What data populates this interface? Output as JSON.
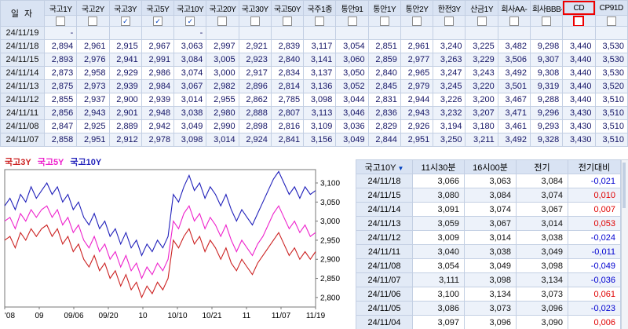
{
  "top_table": {
    "date_header": "일 자",
    "columns": [
      {
        "label": "국고1Y",
        "checked": false,
        "highlighted": false
      },
      {
        "label": "국고2Y",
        "checked": false,
        "highlighted": false
      },
      {
        "label": "국고3Y",
        "checked": true,
        "highlighted": false
      },
      {
        "label": "국고5Y",
        "checked": true,
        "highlighted": false
      },
      {
        "label": "국고10Y",
        "checked": true,
        "highlighted": false
      },
      {
        "label": "국고20Y",
        "checked": false,
        "highlighted": false
      },
      {
        "label": "국고30Y",
        "checked": false,
        "highlighted": false
      },
      {
        "label": "국고50Y",
        "checked": false,
        "highlighted": false
      },
      {
        "label": "국주1종",
        "checked": false,
        "highlighted": false
      },
      {
        "label": "통안91",
        "checked": false,
        "highlighted": false
      },
      {
        "label": "통안1Y",
        "checked": false,
        "highlighted": false
      },
      {
        "label": "통안2Y",
        "checked": false,
        "highlighted": false
      },
      {
        "label": "한전3Y",
        "checked": false,
        "highlighted": false
      },
      {
        "label": "산금1Y",
        "checked": false,
        "highlighted": false
      },
      {
        "label": "회사AA-",
        "checked": false,
        "highlighted": false
      },
      {
        "label": "회사BBB-",
        "checked": false,
        "highlighted": false
      },
      {
        "label": "CD",
        "checked": false,
        "highlighted": true
      },
      {
        "label": "CP91D",
        "checked": false,
        "highlighted": false
      }
    ],
    "rows": [
      {
        "date": "24/11/19",
        "values": [
          "-",
          "",
          "",
          "",
          "-",
          "",
          "",
          "",
          "",
          "",
          "",
          "",
          "",
          "",
          "",
          "",
          "",
          ""
        ]
      },
      {
        "date": "24/11/18",
        "values": [
          "2,894",
          "2,961",
          "2,915",
          "2,967",
          "3,063",
          "2,997",
          "2,921",
          "2,839",
          "3,117",
          "3,054",
          "2,851",
          "2,961",
          "3,240",
          "3,225",
          "3,482",
          "9,298",
          "3,440",
          "3,530"
        ]
      },
      {
        "date": "24/11/15",
        "values": [
          "2,893",
          "2,976",
          "2,941",
          "2,991",
          "3,084",
          "3,005",
          "2,923",
          "2,840",
          "3,141",
          "3,060",
          "2,859",
          "2,977",
          "3,263",
          "3,229",
          "3,506",
          "9,307",
          "3,440",
          "3,530"
        ]
      },
      {
        "date": "24/11/14",
        "values": [
          "2,873",
          "2,958",
          "2,929",
          "2,986",
          "3,074",
          "3,000",
          "2,917",
          "2,834",
          "3,137",
          "3,050",
          "2,840",
          "2,965",
          "3,247",
          "3,243",
          "3,492",
          "9,308",
          "3,440",
          "3,530"
        ]
      },
      {
        "date": "24/11/13",
        "values": [
          "2,875",
          "2,973",
          "2,939",
          "2,984",
          "3,067",
          "2,982",
          "2,896",
          "2,814",
          "3,136",
          "3,052",
          "2,845",
          "2,979",
          "3,245",
          "3,220",
          "3,501",
          "9,319",
          "3,440",
          "3,520"
        ]
      },
      {
        "date": "24/11/12",
        "values": [
          "2,855",
          "2,937",
          "2,900",
          "2,939",
          "3,014",
          "2,955",
          "2,862",
          "2,785",
          "3,098",
          "3,044",
          "2,831",
          "2,944",
          "3,226",
          "3,200",
          "3,467",
          "9,288",
          "3,440",
          "3,510"
        ]
      },
      {
        "date": "24/11/11",
        "values": [
          "2,856",
          "2,943",
          "2,901",
          "2,948",
          "3,038",
          "2,980",
          "2,888",
          "2,807",
          "3,113",
          "3,046",
          "2,836",
          "2,943",
          "3,232",
          "3,207",
          "3,471",
          "9,296",
          "3,430",
          "3,510"
        ]
      },
      {
        "date": "24/11/08",
        "values": [
          "2,847",
          "2,925",
          "2,889",
          "2,942",
          "3,049",
          "2,990",
          "2,898",
          "2,816",
          "3,109",
          "3,036",
          "2,829",
          "2,926",
          "3,194",
          "3,180",
          "3,461",
          "9,293",
          "3,430",
          "3,510"
        ]
      },
      {
        "date": "24/11/07",
        "values": [
          "2,858",
          "2,951",
          "2,912",
          "2,978",
          "3,098",
          "3,014",
          "2,924",
          "2,841",
          "3,156",
          "3,049",
          "2,844",
          "2,951",
          "3,250",
          "3,211",
          "3,492",
          "9,328",
          "3,430",
          "3,510"
        ]
      }
    ]
  },
  "chart_data": {
    "type": "line",
    "title": "",
    "legend_position": "top-left",
    "grid": false,
    "x_tick_labels": [
      "'08",
      "09",
      "09/06",
      "09/20",
      "10",
      "10/10",
      "10/21",
      "11",
      "11/07",
      "11/19"
    ],
    "y_tick_labels": [
      "3,100",
      "3,050",
      "3,000",
      "2,950",
      "2,900",
      "2,850",
      "2,800"
    ],
    "y_tick_values": [
      3.1,
      3.05,
      3.0,
      2.95,
      2.9,
      2.85,
      2.8
    ],
    "ylim": [
      2.775,
      3.135
    ],
    "series": [
      {
        "name": "국고3Y",
        "color": "#cc2222",
        "values": [
          2.95,
          2.96,
          2.93,
          2.97,
          2.95,
          2.98,
          2.96,
          2.98,
          2.99,
          2.96,
          2.98,
          2.94,
          2.96,
          2.92,
          2.94,
          2.9,
          2.88,
          2.91,
          2.87,
          2.89,
          2.85,
          2.87,
          2.83,
          2.86,
          2.82,
          2.84,
          2.8,
          2.83,
          2.81,
          2.84,
          2.82,
          2.85,
          2.95,
          2.93,
          2.96,
          2.98,
          2.94,
          2.96,
          2.92,
          2.95,
          2.93,
          2.9,
          2.93,
          2.89,
          2.87,
          2.9,
          2.88,
          2.86,
          2.89,
          2.91,
          2.93,
          2.95,
          2.97,
          2.94,
          2.91,
          2.93,
          2.9,
          2.92,
          2.9,
          2.92
        ]
      },
      {
        "name": "국고5Y",
        "color": "#ee22cc",
        "values": [
          3.0,
          3.01,
          2.98,
          3.02,
          3.0,
          3.03,
          3.01,
          3.03,
          3.04,
          3.01,
          3.03,
          2.99,
          3.01,
          2.97,
          2.99,
          2.95,
          2.93,
          2.96,
          2.92,
          2.94,
          2.9,
          2.92,
          2.88,
          2.91,
          2.87,
          2.89,
          2.85,
          2.88,
          2.86,
          2.89,
          2.87,
          2.9,
          3.0,
          2.98,
          3.02,
          3.04,
          3.0,
          3.02,
          2.98,
          3.01,
          2.99,
          2.96,
          2.99,
          2.95,
          2.92,
          2.95,
          2.93,
          2.91,
          2.94,
          2.96,
          2.99,
          3.02,
          3.04,
          3.01,
          2.98,
          3.0,
          2.97,
          2.99,
          2.96,
          2.97
        ]
      },
      {
        "name": "국고10Y",
        "color": "#2222bb",
        "values": [
          3.04,
          3.06,
          3.03,
          3.07,
          3.05,
          3.09,
          3.06,
          3.08,
          3.1,
          3.07,
          3.09,
          3.05,
          3.07,
          3.03,
          3.05,
          3.01,
          2.99,
          3.02,
          2.98,
          3.0,
          2.96,
          2.98,
          2.94,
          2.97,
          2.93,
          2.95,
          2.91,
          2.94,
          2.92,
          2.95,
          2.93,
          2.96,
          3.07,
          3.05,
          3.09,
          3.12,
          3.08,
          3.1,
          3.06,
          3.09,
          3.07,
          3.04,
          3.07,
          3.03,
          3.0,
          3.03,
          3.01,
          2.99,
          3.02,
          3.05,
          3.08,
          3.11,
          3.13,
          3.1,
          3.07,
          3.09,
          3.06,
          3.09,
          3.07,
          3.08
        ]
      }
    ]
  },
  "detail_table": {
    "columns": [
      "국고10Y",
      "11시30분",
      "16시00분",
      "전기",
      "전기대비"
    ],
    "sort_icon": "▼",
    "rows": [
      {
        "date": "24/11/18",
        "values": [
          "3,066",
          "3,063",
          "3,084"
        ],
        "change": "-0,021"
      },
      {
        "date": "24/11/15",
        "values": [
          "3,080",
          "3,084",
          "3,074"
        ],
        "change": "0,010"
      },
      {
        "date": "24/11/14",
        "values": [
          "3,091",
          "3,074",
          "3,067"
        ],
        "change": "0,007"
      },
      {
        "date": "24/11/13",
        "values": [
          "3,059",
          "3,067",
          "3,014"
        ],
        "change": "0,053"
      },
      {
        "date": "24/11/12",
        "values": [
          "3,009",
          "3,014",
          "3,038"
        ],
        "change": "-0,024"
      },
      {
        "date": "24/11/11",
        "values": [
          "3,040",
          "3,038",
          "3,049"
        ],
        "change": "-0,011"
      },
      {
        "date": "24/11/08",
        "values": [
          "3,054",
          "3,049",
          "3,098"
        ],
        "change": "-0,049"
      },
      {
        "date": "24/11/07",
        "values": [
          "3,111",
          "3,098",
          "3,134"
        ],
        "change": "-0,036"
      },
      {
        "date": "24/11/06",
        "values": [
          "3,100",
          "3,134",
          "3,073"
        ],
        "change": "0,061"
      },
      {
        "date": "24/11/05",
        "values": [
          "3,086",
          "3,073",
          "3,096"
        ],
        "change": "-0,023"
      },
      {
        "date": "24/11/04",
        "values": [
          "3,097",
          "3,096",
          "3,090"
        ],
        "change": "0,006"
      }
    ]
  },
  "colors": {
    "header_bg": "#d9e3f3",
    "alt_row_bg": "#edf2fa",
    "check_accent": "#0040c0",
    "cd_highlight": "#ee0000",
    "positive": "#e00000",
    "negative": "#0000d0"
  }
}
